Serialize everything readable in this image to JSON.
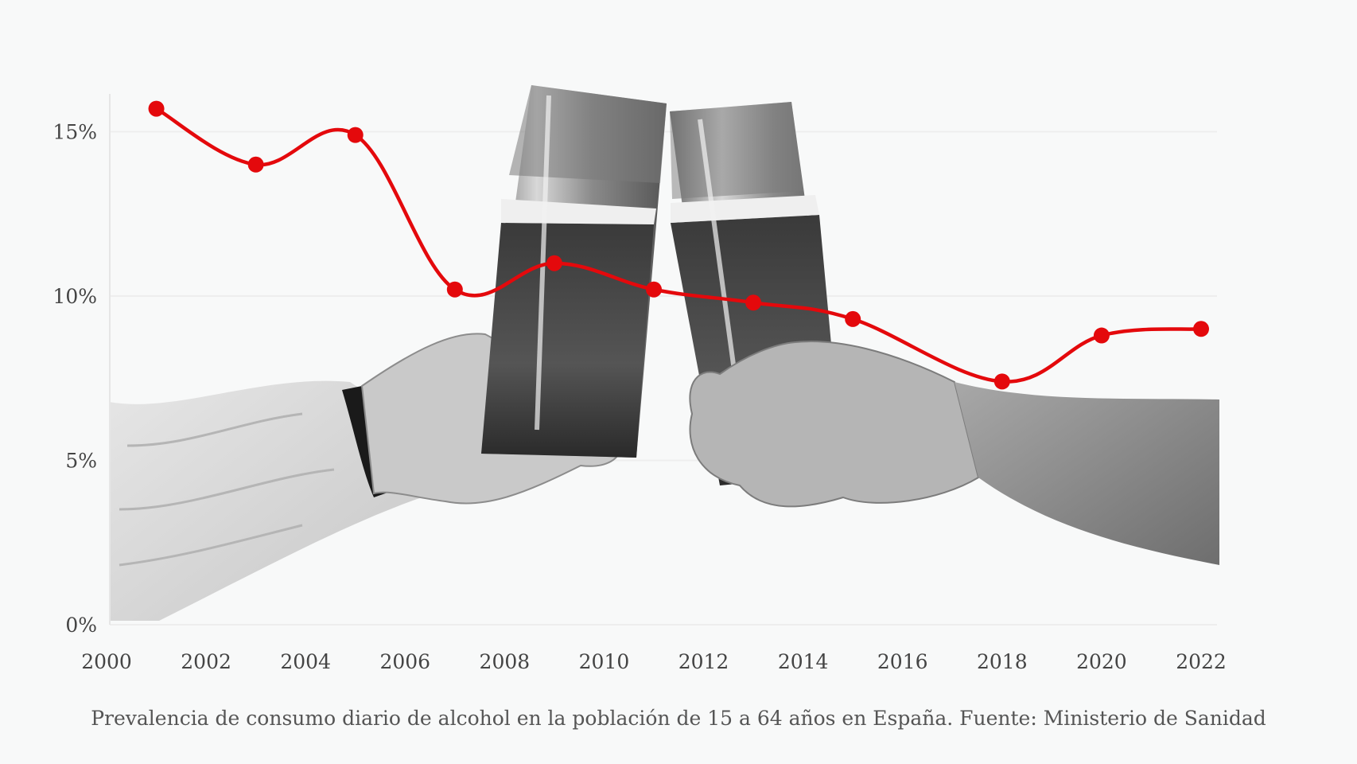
{
  "caption": "Prevalencia de consumo diario de alcohol en la población de 15 a 64 años en España. Fuente: Ministerio de Sanidad",
  "background_image": {
    "subject": "two hands toasting with glasses of beer",
    "style": "black-and-white photo"
  },
  "colors": {
    "line": "#e4090c",
    "grid": "#eeeeee",
    "background": "#f8f9f9"
  },
  "chart_data": {
    "type": "line",
    "x": [
      2001,
      2003,
      2005,
      2007,
      2009,
      2011,
      2013,
      2015,
      2018,
      2020,
      2022
    ],
    "series": [
      {
        "values": [
          15.7,
          14.0,
          14.9,
          10.2,
          11.0,
          10.2,
          9.8,
          9.3,
          7.4,
          8.8,
          9.0
        ]
      }
    ],
    "x_ticks": [
      "2000",
      "2002",
      "2004",
      "2006",
      "2008",
      "2010",
      "2012",
      "2014",
      "2016",
      "2018",
      "2020",
      "2022"
    ],
    "y_ticks": [
      "0%",
      "5%",
      "10%",
      "15%"
    ],
    "xlim": [
      2000,
      2022
    ],
    "ylim": [
      0,
      16
    ],
    "grid": true,
    "legend": "none"
  }
}
